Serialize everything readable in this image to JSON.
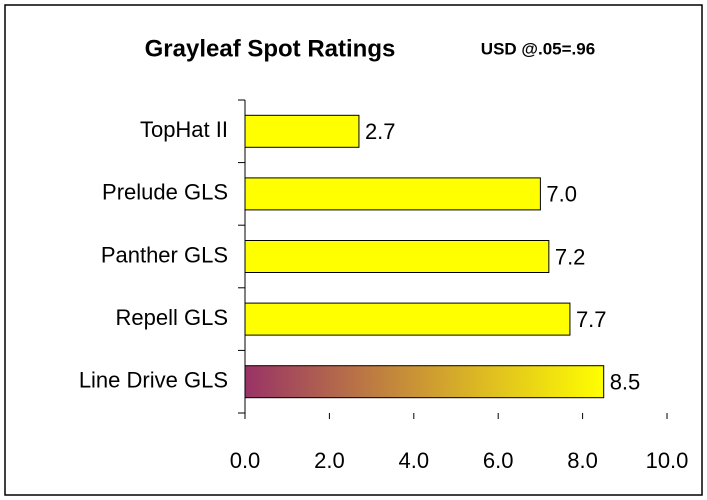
{
  "chart_data": {
    "type": "hbar",
    "title": "Grayleaf Spot Ratings",
    "subtitle": "USD @.05=.96",
    "categories": [
      "TopHat II",
      "Prelude GLS",
      "Panther GLS",
      "Repell GLS",
      "Line Drive GLS"
    ],
    "values": [
      2.7,
      7.0,
      7.2,
      7.7,
      8.5
    ],
    "value_labels": [
      "2.7",
      "7.0",
      "7.2",
      "7.7",
      "8.5"
    ],
    "colors": [
      "#ffff00",
      "#ffff00",
      "#ffff00",
      "#ffff00",
      [
        "#993366",
        "#ffff00"
      ]
    ],
    "xlim": [
      0,
      10
    ],
    "xticks": [
      {
        "value": 0,
        "label": "0.0"
      },
      {
        "value": 2,
        "label": "2.0"
      },
      {
        "value": 4,
        "label": "4.0"
      },
      {
        "value": 6,
        "label": "6.0"
      },
      {
        "value": 8,
        "label": "8.0"
      },
      {
        "value": 10,
        "label": "10.0"
      }
    ],
    "grid": false
  }
}
